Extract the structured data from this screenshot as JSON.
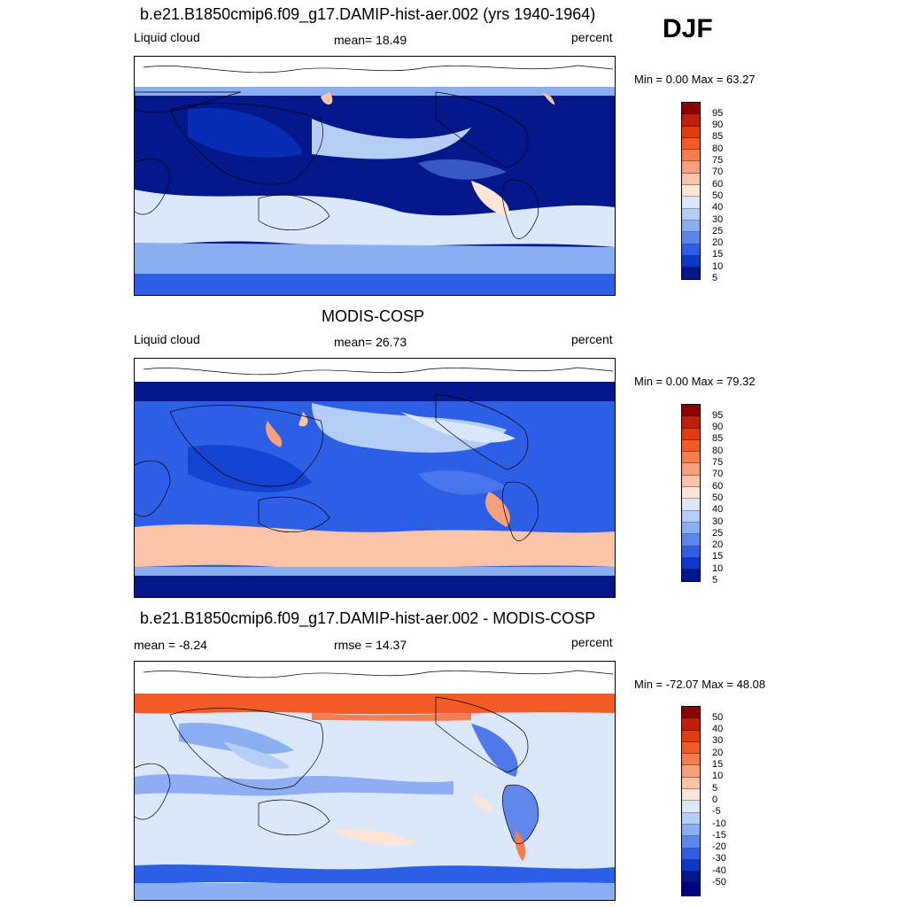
{
  "season": "DJF",
  "panels": [
    {
      "title": "b.e21.B1850cmip6.f09_g17.DAMIP-hist-aer.002 (yrs 1940-1964)",
      "left_label": "Liquid cloud",
      "center_label": "mean=  18.49",
      "right_label": "percent",
      "minmax": "Min =    0.00 Max =  63.27",
      "colorbar_labels": [
        "95",
        "90",
        "85",
        "80",
        "75",
        "70",
        "60",
        "50",
        "40",
        "30",
        "25",
        "20",
        "15",
        "10",
        "5"
      ],
      "colorbar_colors": [
        "#8b0000",
        "#c0200a",
        "#e23b0e",
        "#f25a26",
        "#f57d4f",
        "#f7a07c",
        "#fbc3a8",
        "#fde5d8",
        "#dbe8fb",
        "#b5cef7",
        "#8aaef2",
        "#5b86ec",
        "#2d5ee6",
        "#0c37c7",
        "#02178a"
      ]
    },
    {
      "title": "MODIS-COSP",
      "left_label": "Liquid cloud",
      "center_label": "mean=  26.73",
      "right_label": "percent",
      "minmax": "Min =    0.00 Max =  79.32",
      "colorbar_labels": [
        "95",
        "90",
        "85",
        "80",
        "75",
        "70",
        "60",
        "50",
        "40",
        "30",
        "25",
        "20",
        "15",
        "10",
        "5"
      ],
      "colorbar_colors": [
        "#8b0000",
        "#c0200a",
        "#e23b0e",
        "#f25a26",
        "#f57d4f",
        "#f7a07c",
        "#fbc3a8",
        "#fde5d8",
        "#dbe8fb",
        "#b5cef7",
        "#8aaef2",
        "#5b86ec",
        "#2d5ee6",
        "#0c37c7",
        "#02178a"
      ]
    },
    {
      "title": "b.e21.B1850cmip6.f09_g17.DAMIP-hist-aer.002 - MODIS-COSP",
      "left_label": "mean =  -8.24",
      "center_label": "rmse =  14.37",
      "right_label": "percent",
      "minmax": "Min = -72.07 Max =  48.08",
      "colorbar_labels": [
        "50",
        "40",
        "30",
        "20",
        "15",
        "10",
        "5",
        "0",
        "-5",
        "-10",
        "-15",
        "-20",
        "-30",
        "-40",
        "-50"
      ],
      "colorbar_colors": [
        "#8b0000",
        "#c0200a",
        "#e23b0e",
        "#f25a26",
        "#f57d4f",
        "#f7a07c",
        "#fbc3a8",
        "#fde5d8",
        "#dbe8fb",
        "#b5cef7",
        "#8aaef2",
        "#5b86ec",
        "#2d5ee6",
        "#0c37c7",
        "#02178a",
        "#000080"
      ]
    }
  ]
}
